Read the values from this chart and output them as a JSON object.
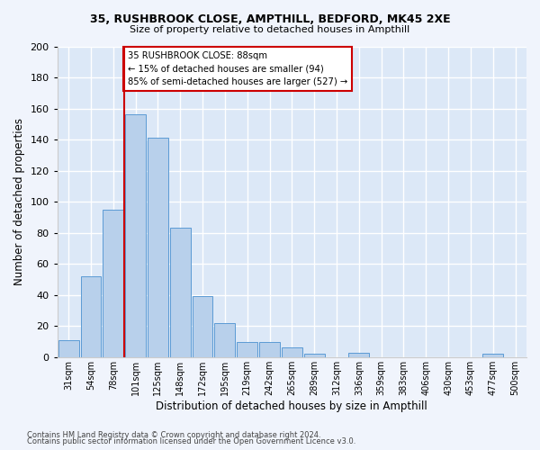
{
  "title1": "35, RUSHBROOK CLOSE, AMPTHILL, BEDFORD, MK45 2XE",
  "title2": "Size of property relative to detached houses in Ampthill",
  "xlabel": "Distribution of detached houses by size in Ampthill",
  "ylabel": "Number of detached properties",
  "footnote1": "Contains HM Land Registry data © Crown copyright and database right 2024.",
  "footnote2": "Contains public sector information licensed under the Open Government Licence v3.0.",
  "bar_labels": [
    "31sqm",
    "54sqm",
    "78sqm",
    "101sqm",
    "125sqm",
    "148sqm",
    "172sqm",
    "195sqm",
    "219sqm",
    "242sqm",
    "265sqm",
    "289sqm",
    "312sqm",
    "336sqm",
    "359sqm",
    "383sqm",
    "406sqm",
    "430sqm",
    "453sqm",
    "477sqm",
    "500sqm"
  ],
  "bar_values": [
    11,
    52,
    95,
    156,
    141,
    83,
    39,
    22,
    10,
    10,
    6,
    2,
    0,
    3,
    0,
    0,
    0,
    0,
    0,
    2,
    0
  ],
  "bar_color": "#b8d0eb",
  "bar_edge_color": "#5b9bd5",
  "bg_color": "#dce8f7",
  "grid_color": "#ffffff",
  "vline_color": "#cc0000",
  "annotation_text": "35 RUSHBROOK CLOSE: 88sqm\n← 15% of detached houses are smaller (94)\n85% of semi-detached houses are larger (527) →",
  "annotation_box_color": "#ffffff",
  "annotation_box_edge": "#cc0000",
  "ylim": [
    0,
    200
  ],
  "yticks": [
    0,
    20,
    40,
    60,
    80,
    100,
    120,
    140,
    160,
    180,
    200
  ],
  "fig_bg": "#f0f4fc"
}
